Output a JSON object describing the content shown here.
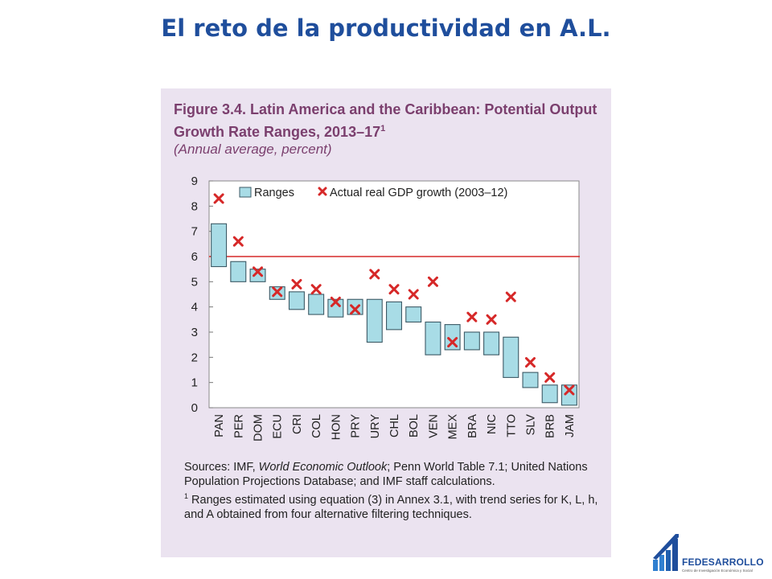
{
  "slide": {
    "title": "El reto de la productividad en A.L."
  },
  "figure": {
    "title": "Figure 3.4. Latin America and the Caribbean: Potential Output Growth Rate Ranges, 2013–17",
    "title_footnote": "1",
    "subtitle": "(Annual average, percent)",
    "sources_prefix": "Sources: IMF, ",
    "sources_italic": "World Economic Outlook",
    "sources_rest": "; Penn World Table 7.1; United Nations Population Projections Database; and IMF staff calculations.",
    "footnote_marker": "1",
    "footnote_text": " Ranges estimated using equation (3) in Annex 3.1, with trend series for K, L, h, and A obtained from four alternative filtering techniques."
  },
  "chart_data": {
    "type": "range-bar",
    "categories": [
      "PAN",
      "PER",
      "DOM",
      "ECU",
      "CRI",
      "COL",
      "HON",
      "PRY",
      "URY",
      "CHL",
      "BOL",
      "VEN",
      "MEX",
      "BRA",
      "NIC",
      "TTO",
      "SLV",
      "BRB",
      "JAM"
    ],
    "ranges": [
      [
        5.6,
        7.3
      ],
      [
        5.0,
        5.8
      ],
      [
        5.0,
        5.5
      ],
      [
        4.3,
        4.8
      ],
      [
        3.9,
        4.6
      ],
      [
        3.7,
        4.5
      ],
      [
        3.6,
        4.3
      ],
      [
        3.7,
        4.3
      ],
      [
        2.6,
        4.3
      ],
      [
        3.1,
        4.2
      ],
      [
        3.4,
        4.0
      ],
      [
        2.1,
        3.4
      ],
      [
        2.3,
        3.3
      ],
      [
        2.3,
        3.0
      ],
      [
        2.1,
        3.0
      ],
      [
        1.2,
        2.8
      ],
      [
        0.8,
        1.4
      ],
      [
        0.2,
        0.9
      ],
      [
        0.1,
        0.9
      ]
    ],
    "actual": [
      8.3,
      6.6,
      5.4,
      4.6,
      4.9,
      4.7,
      4.2,
      3.9,
      5.3,
      4.7,
      4.5,
      5.0,
      2.6,
      3.6,
      3.5,
      4.4,
      1.8,
      1.2,
      0.7
    ],
    "series": [
      {
        "name": "Ranges",
        "color": "#a8dce6",
        "stroke": "#3d5a66"
      },
      {
        "name": "Actual real GDP growth (2003–12)",
        "color": "#d62828"
      }
    ],
    "reference_line": {
      "y": 6,
      "color": "#d62828"
    },
    "ylim": [
      0,
      9
    ],
    "yticks": [
      0,
      1,
      2,
      3,
      4,
      5,
      6,
      7,
      8,
      9
    ],
    "legend_position": "top"
  },
  "logo": {
    "name": "FEDESARROLLO",
    "tagline": "Centro de Investigación Económica y Social",
    "color": "#1f4e9c"
  }
}
